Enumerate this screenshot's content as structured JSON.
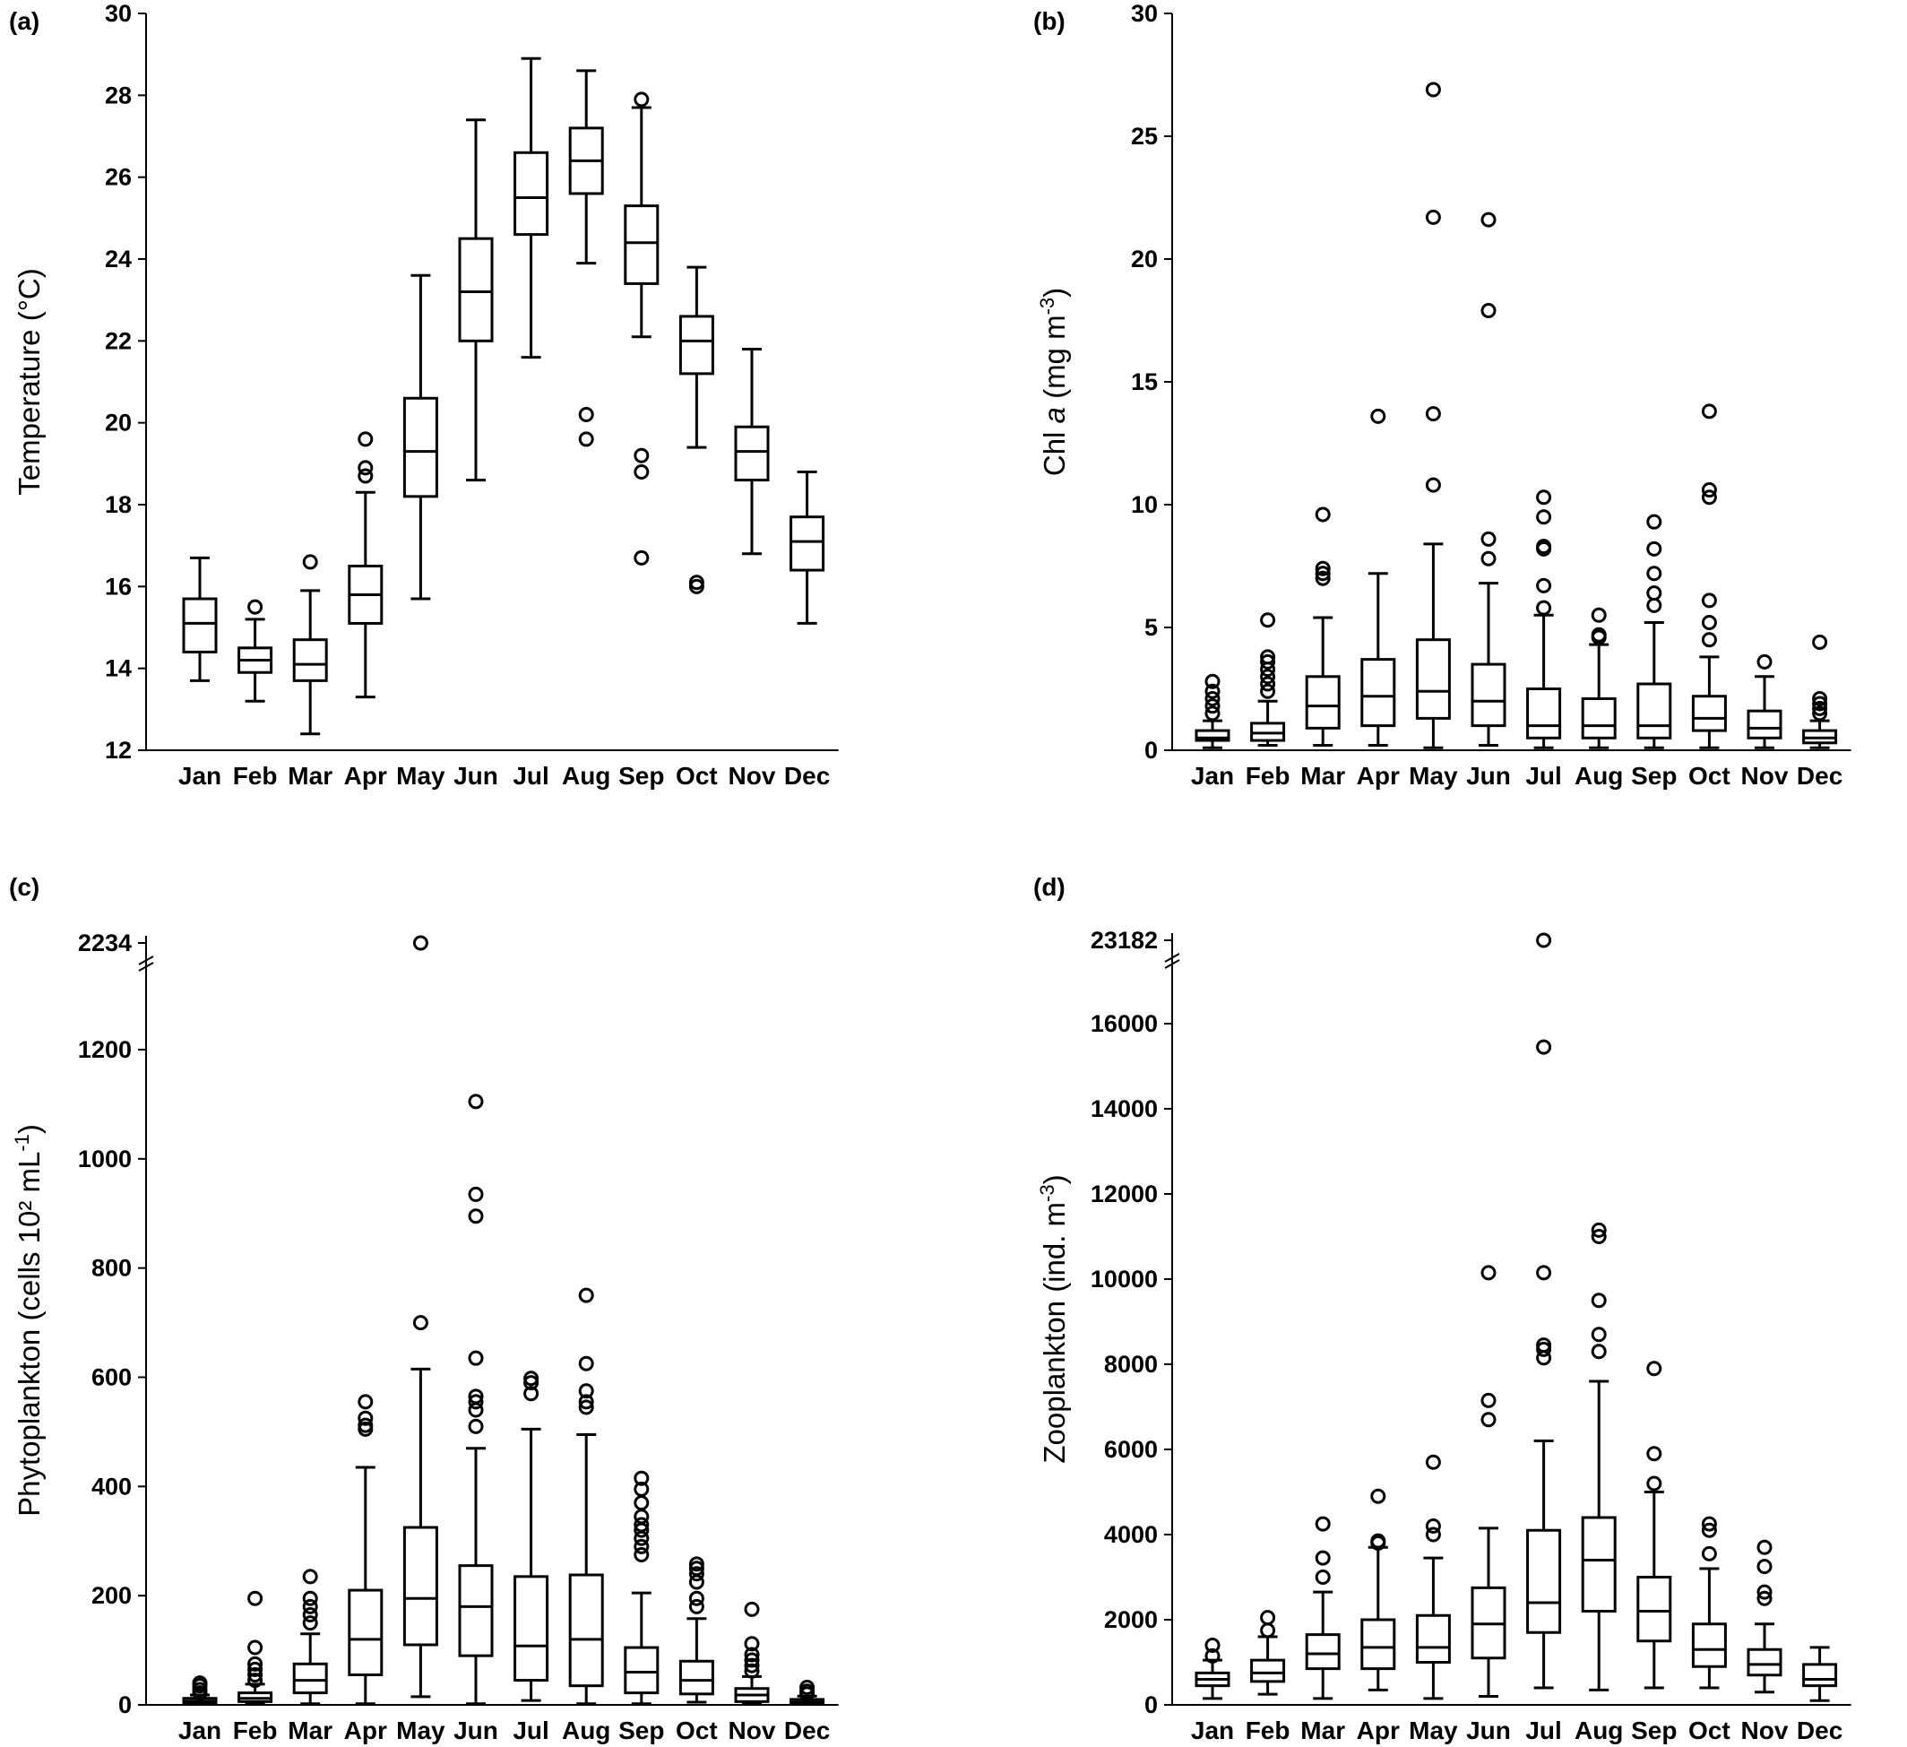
{
  "chart_data": [
    {
      "type": "boxplot",
      "panel_label": "(a)",
      "ylabel": "Temperature (°C)",
      "ylabel_parts": [
        {
          "t": "Temperature (°C)",
          "sup": false
        }
      ],
      "ylim": [
        12,
        30
      ],
      "yticks": [
        12,
        14,
        16,
        18,
        20,
        22,
        24,
        26,
        28,
        30
      ],
      "categories": [
        "Jan",
        "Feb",
        "Mar",
        "Apr",
        "May",
        "Jun",
        "Jul",
        "Aug",
        "Sep",
        "Oct",
        "Nov",
        "Dec"
      ],
      "boxes": [
        {
          "min": 13.7,
          "q1": 14.4,
          "median": 15.1,
          "q3": 15.7,
          "max": 16.7,
          "outliers": []
        },
        {
          "min": 13.2,
          "q1": 13.9,
          "median": 14.2,
          "q3": 14.5,
          "max": 15.2,
          "outliers": [
            15.5
          ]
        },
        {
          "min": 12.4,
          "q1": 13.7,
          "median": 14.1,
          "q3": 14.7,
          "max": 15.9,
          "outliers": [
            16.6
          ]
        },
        {
          "min": 13.3,
          "q1": 15.1,
          "median": 15.8,
          "q3": 16.5,
          "max": 18.3,
          "outliers": [
            18.7,
            18.9,
            19.6
          ]
        },
        {
          "min": 15.7,
          "q1": 18.2,
          "median": 19.3,
          "q3": 20.6,
          "max": 23.6,
          "outliers": []
        },
        {
          "min": 18.6,
          "q1": 22.0,
          "median": 23.2,
          "q3": 24.5,
          "max": 27.4,
          "outliers": []
        },
        {
          "min": 21.6,
          "q1": 24.6,
          "median": 25.5,
          "q3": 26.6,
          "max": 28.9,
          "outliers": []
        },
        {
          "min": 23.9,
          "q1": 25.6,
          "median": 26.4,
          "q3": 27.2,
          "max": 28.6,
          "outliers": [
            19.6,
            20.2
          ]
        },
        {
          "min": 22.1,
          "q1": 23.4,
          "median": 24.4,
          "q3": 25.3,
          "max": 27.7,
          "outliers": [
            16.7,
            18.8,
            19.2,
            27.9
          ]
        },
        {
          "min": 19.4,
          "q1": 21.2,
          "median": 22.0,
          "q3": 22.6,
          "max": 23.8,
          "outliers": [
            16.0,
            16.1
          ]
        },
        {
          "min": 16.8,
          "q1": 18.6,
          "median": 19.3,
          "q3": 19.9,
          "max": 21.8,
          "outliers": []
        },
        {
          "min": 15.1,
          "q1": 16.4,
          "median": 17.1,
          "q3": 17.7,
          "max": 18.8,
          "outliers": []
        }
      ]
    },
    {
      "type": "boxplot",
      "panel_label": "(b)",
      "ylabel": "Chl a (mg m-3)",
      "ylabel_parts": [
        {
          "t": "Chl ",
          "sup": false
        },
        {
          "t": "a",
          "sup": false,
          "italic": true
        },
        {
          "t": " (mg m",
          "sup": false
        },
        {
          "t": "-3",
          "sup": true
        },
        {
          "t": ")",
          "sup": false
        }
      ],
      "ylim": [
        0,
        30
      ],
      "yticks": [
        0,
        5,
        10,
        15,
        20,
        25,
        30
      ],
      "categories": [
        "Jan",
        "Feb",
        "Mar",
        "Apr",
        "May",
        "Jun",
        "Jul",
        "Aug",
        "Sep",
        "Oct",
        "Nov",
        "Dec"
      ],
      "boxes": [
        {
          "min": 0.1,
          "q1": 0.4,
          "median": 0.5,
          "q3": 0.8,
          "max": 1.2,
          "outliers": [
            1.5,
            1.8,
            2.1,
            2.4,
            2.8
          ]
        },
        {
          "min": 0.2,
          "q1": 0.4,
          "median": 0.7,
          "q3": 1.1,
          "max": 2.0,
          "outliers": [
            2.4,
            2.7,
            3.0,
            3.3,
            3.6,
            3.8,
            5.3
          ]
        },
        {
          "min": 0.2,
          "q1": 0.9,
          "median": 1.8,
          "q3": 3.0,
          "max": 5.4,
          "outliers": [
            7.0,
            7.2,
            7.4,
            9.6
          ]
        },
        {
          "min": 0.2,
          "q1": 1.0,
          "median": 2.2,
          "q3": 3.7,
          "max": 7.2,
          "outliers": [
            13.6
          ]
        },
        {
          "min": 0.1,
          "q1": 1.3,
          "median": 2.4,
          "q3": 4.5,
          "max": 8.4,
          "outliers": [
            10.8,
            13.7,
            21.7,
            26.9
          ]
        },
        {
          "min": 0.2,
          "q1": 1.0,
          "median": 2.0,
          "q3": 3.5,
          "max": 6.8,
          "outliers": [
            7.8,
            8.6,
            17.9,
            21.6
          ]
        },
        {
          "min": 0.1,
          "q1": 0.5,
          "median": 1.0,
          "q3": 2.5,
          "max": 5.5,
          "outliers": [
            5.8,
            6.7,
            8.2,
            8.3,
            9.5,
            10.3
          ]
        },
        {
          "min": 0.1,
          "q1": 0.5,
          "median": 1.0,
          "q3": 2.1,
          "max": 4.3,
          "outliers": [
            4.6,
            4.7,
            5.5
          ]
        },
        {
          "min": 0.1,
          "q1": 0.5,
          "median": 1.0,
          "q3": 2.7,
          "max": 5.2,
          "outliers": [
            5.9,
            6.4,
            7.2,
            8.2,
            9.3
          ]
        },
        {
          "min": 0.1,
          "q1": 0.8,
          "median": 1.3,
          "q3": 2.2,
          "max": 3.8,
          "outliers": [
            4.5,
            5.2,
            6.1,
            10.3,
            10.6,
            13.8
          ]
        },
        {
          "min": 0.1,
          "q1": 0.5,
          "median": 0.9,
          "q3": 1.6,
          "max": 3.0,
          "outliers": [
            3.6
          ]
        },
        {
          "min": 0.1,
          "q1": 0.3,
          "median": 0.5,
          "q3": 0.8,
          "max": 1.2,
          "outliers": [
            1.5,
            1.7,
            1.9,
            2.1,
            4.4
          ]
        }
      ]
    },
    {
      "type": "boxplot",
      "panel_label": "(c)",
      "ylabel": "Phytoplankton (cells 10² mL-1)",
      "ylabel_parts": [
        {
          "t": "Phytoplankton (cells 10² mL",
          "sup": false
        },
        {
          "t": "-1",
          "sup": true
        },
        {
          "t": ")",
          "sup": false
        }
      ],
      "ylim": [
        0,
        1200
      ],
      "yticks": [
        0,
        200,
        400,
        600,
        800,
        1000,
        1200
      ],
      "axis_break": {
        "label": "2234",
        "value": 2234
      },
      "categories": [
        "Jan",
        "Feb",
        "Mar",
        "Apr",
        "May",
        "Jun",
        "Jul",
        "Aug",
        "Sep",
        "Oct",
        "Nov",
        "Dec"
      ],
      "boxes": [
        {
          "min": 1,
          "q1": 4,
          "median": 7,
          "q3": 12,
          "max": 18,
          "outliers": [
            22,
            28,
            35,
            40
          ]
        },
        {
          "min": 2,
          "q1": 6,
          "median": 12,
          "q3": 22,
          "max": 38,
          "outliers": [
            45,
            55,
            65,
            75,
            105,
            195
          ]
        },
        {
          "min": 2,
          "q1": 22,
          "median": 45,
          "q3": 75,
          "max": 130,
          "outliers": [
            150,
            165,
            180,
            195,
            235
          ]
        },
        {
          "min": 2,
          "q1": 55,
          "median": 120,
          "q3": 210,
          "max": 435,
          "outliers": [
            505,
            512,
            525,
            555
          ]
        },
        {
          "min": 15,
          "q1": 110,
          "median": 195,
          "q3": 325,
          "max": 615,
          "outliers": [
            700,
            2234
          ]
        },
        {
          "min": 2,
          "q1": 90,
          "median": 180,
          "q3": 255,
          "max": 470,
          "outliers": [
            510,
            540,
            555,
            565,
            635,
            895,
            935,
            1105
          ]
        },
        {
          "min": 8,
          "q1": 45,
          "median": 108,
          "q3": 235,
          "max": 505,
          "outliers": [
            570,
            590,
            598
          ]
        },
        {
          "min": 2,
          "q1": 35,
          "median": 120,
          "q3": 238,
          "max": 495,
          "outliers": [
            545,
            555,
            575,
            625,
            750
          ]
        },
        {
          "min": 2,
          "q1": 22,
          "median": 60,
          "q3": 105,
          "max": 205,
          "outliers": [
            275,
            290,
            305,
            320,
            330,
            345,
            370,
            395,
            415
          ]
        },
        {
          "min": 5,
          "q1": 20,
          "median": 45,
          "q3": 80,
          "max": 158,
          "outliers": [
            180,
            195,
            225,
            240,
            250,
            258
          ]
        },
        {
          "min": 2,
          "q1": 6,
          "median": 18,
          "q3": 30,
          "max": 52,
          "outliers": [
            62,
            72,
            82,
            92,
            112,
            175
          ]
        },
        {
          "min": 1,
          "q1": 3,
          "median": 5,
          "q3": 10,
          "max": 16,
          "outliers": [
            20,
            25,
            32
          ]
        }
      ]
    },
    {
      "type": "boxplot",
      "panel_label": "(d)",
      "ylabel": "Zooplankton (ind. m-3)",
      "ylabel_parts": [
        {
          "t": "Zooplankton (ind. m",
          "sup": false
        },
        {
          "t": "-3",
          "sup": true
        },
        {
          "t": ")",
          "sup": false
        }
      ],
      "ylim": [
        0,
        16000
      ],
      "yticks": [
        0,
        2000,
        4000,
        6000,
        8000,
        10000,
        12000,
        14000,
        16000
      ],
      "axis_break": {
        "label": "23182",
        "value": 23182
      },
      "categories": [
        "Jan",
        "Feb",
        "Mar",
        "Apr",
        "May",
        "Jun",
        "Jul",
        "Aug",
        "Sep",
        "Oct",
        "Nov",
        "Dec"
      ],
      "boxes": [
        {
          "min": 150,
          "q1": 450,
          "median": 600,
          "q3": 750,
          "max": 1050,
          "outliers": [
            1150,
            1400
          ]
        },
        {
          "min": 250,
          "q1": 550,
          "median": 750,
          "q3": 1050,
          "max": 1600,
          "outliers": [
            1750,
            2050
          ]
        },
        {
          "min": 150,
          "q1": 850,
          "median": 1200,
          "q3": 1650,
          "max": 2650,
          "outliers": [
            3000,
            3450,
            4250
          ]
        },
        {
          "min": 350,
          "q1": 850,
          "median": 1350,
          "q3": 2000,
          "max": 3700,
          "outliers": [
            3800,
            3850,
            4900
          ]
        },
        {
          "min": 150,
          "q1": 1000,
          "median": 1350,
          "q3": 2100,
          "max": 3450,
          "outliers": [
            4000,
            4200,
            5700
          ]
        },
        {
          "min": 200,
          "q1": 1100,
          "median": 1900,
          "q3": 2750,
          "max": 4150,
          "outliers": [
            6700,
            7150,
            10150
          ]
        },
        {
          "min": 400,
          "q1": 1700,
          "median": 2400,
          "q3": 4100,
          "max": 6200,
          "outliers": [
            8150,
            8350,
            8450,
            10150,
            15450,
            23182
          ]
        },
        {
          "min": 350,
          "q1": 2200,
          "median": 3400,
          "q3": 4400,
          "max": 7600,
          "outliers": [
            8300,
            8700,
            9500,
            11000,
            11150
          ]
        },
        {
          "min": 400,
          "q1": 1500,
          "median": 2200,
          "q3": 3000,
          "max": 5000,
          "outliers": [
            5200,
            5900,
            7900
          ]
        },
        {
          "min": 400,
          "q1": 900,
          "median": 1300,
          "q3": 1900,
          "max": 3200,
          "outliers": [
            3550,
            4100,
            4250
          ]
        },
        {
          "min": 300,
          "q1": 700,
          "median": 950,
          "q3": 1300,
          "max": 1900,
          "outliers": [
            2500,
            2650,
            3250,
            3700
          ]
        },
        {
          "min": 100,
          "q1": 450,
          "median": 600,
          "q3": 950,
          "max": 1350,
          "outliers": []
        }
      ]
    }
  ]
}
